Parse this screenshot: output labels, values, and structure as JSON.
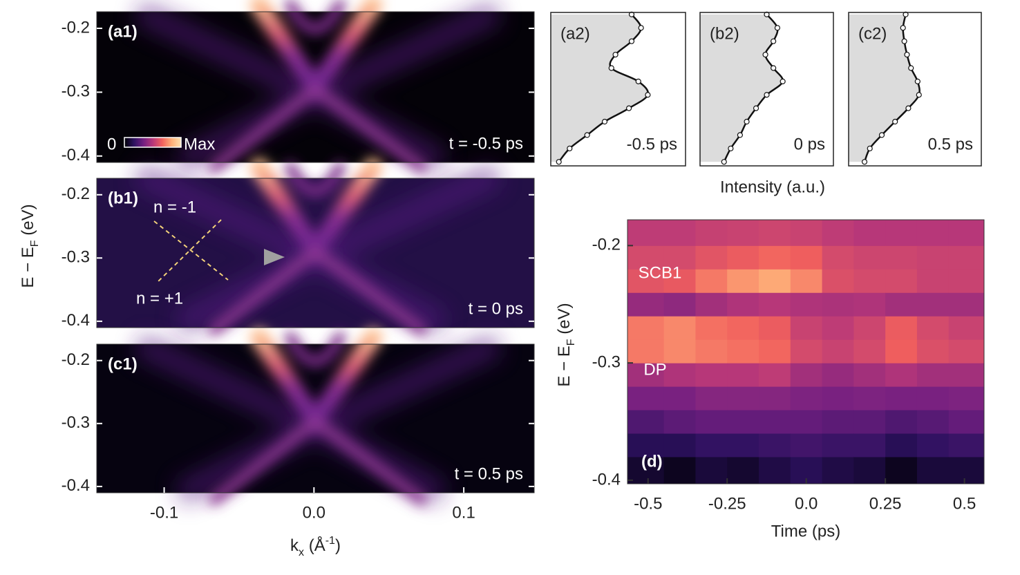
{
  "chart_data": [
    {
      "type": "arpes",
      "panel": "(a1)",
      "annotation": "t = -0.5 ps",
      "ylim": [
        -0.41,
        -0.174
      ],
      "yticks": [
        -0.2,
        -0.3,
        -0.4
      ],
      "xlim": [
        -0.145,
        0.147
      ],
      "colorbar": {
        "min_label": "0",
        "max_label": "Max"
      }
    },
    {
      "type": "arpes",
      "panel": "(b1)",
      "annotation": "t = 0 ps",
      "ylim": [
        -0.41,
        -0.174
      ],
      "yticks": [
        -0.2,
        -0.3,
        -0.4
      ],
      "xlim": [
        -0.145,
        0.147
      ],
      "ylabel": [
        "E − E",
        "F",
        " (eV)"
      ],
      "lines": [
        "n = -1",
        "n = +1"
      ]
    },
    {
      "type": "arpes",
      "panel": "(c1)",
      "annotation": "t = 0.5 ps",
      "ylim": [
        -0.41,
        -0.174
      ],
      "yticks": [
        -0.2,
        -0.3,
        -0.4
      ],
      "xlim": [
        -0.145,
        0.147
      ],
      "xticks": [
        -0.1,
        {
          "value": 0,
          "label": "0.0"
        },
        0.1
      ],
      "xlabel": [
        "k",
        "x",
        " (Å",
        "-1",
        ")"
      ]
    },
    {
      "type": "edc",
      "panel": "(a2)",
      "annotation": "-0.5 ps",
      "ylim": [
        -0.406,
        -0.177
      ],
      "xlim": [
        0,
        1
      ],
      "y": [
        -0.18,
        -0.2,
        -0.22,
        -0.24,
        -0.26,
        -0.28,
        -0.3,
        -0.32,
        -0.34,
        -0.36,
        -0.38,
        -0.4
      ],
      "values": [
        0.6,
        0.67,
        0.6,
        0.48,
        0.45,
        0.65,
        0.72,
        0.58,
        0.4,
        0.27,
        0.14,
        0.06
      ],
      "marker": "#888888"
    },
    {
      "type": "edc",
      "panel": "(b2)",
      "annotation": "0 ps",
      "ylim": [
        -0.406,
        -0.177
      ],
      "xlim": [
        0,
        1
      ],
      "xlabel": "Intensity (a.u.)",
      "y": [
        -0.18,
        -0.2,
        -0.22,
        -0.24,
        -0.26,
        -0.28,
        -0.3,
        -0.32,
        -0.34,
        -0.36,
        -0.38,
        -0.4
      ],
      "values": [
        0.5,
        0.58,
        0.55,
        0.49,
        0.55,
        0.62,
        0.5,
        0.42,
        0.35,
        0.3,
        0.23,
        0.18
      ],
      "marker": "#f4a77e"
    },
    {
      "type": "edc",
      "panel": "(c2)",
      "annotation": "0.5 ps",
      "ylim": [
        -0.406,
        -0.177
      ],
      "xlim": [
        0,
        1
      ],
      "y": [
        -0.18,
        -0.2,
        -0.22,
        -0.24,
        -0.26,
        -0.28,
        -0.3,
        -0.32,
        -0.34,
        -0.36,
        -0.38,
        -0.4
      ],
      "values": [
        0.43,
        0.41,
        0.42,
        0.44,
        0.47,
        0.52,
        0.53,
        0.45,
        0.35,
        0.25,
        0.16,
        0.12
      ],
      "marker": "#888888"
    },
    {
      "type": "heatmap",
      "panel": "(d)",
      "xlabel": "Time (ps)",
      "ylabel": [
        "E − E",
        "F",
        " (eV)"
      ],
      "annotations": [
        "SCB1",
        "DP"
      ],
      "x": [
        -0.5,
        -0.4,
        -0.3,
        -0.2,
        -0.1,
        0.0,
        0.1,
        0.2,
        0.3,
        0.4,
        0.5
      ],
      "y": [
        -0.39,
        -0.37,
        -0.35,
        -0.33,
        -0.31,
        -0.29,
        -0.27,
        -0.25,
        -0.23,
        -0.21,
        -0.19
      ],
      "values": [
        [
          0.08,
          0.15,
          0.25,
          0.35,
          0.45,
          0.72,
          0.72,
          0.42,
          0.62,
          0.58,
          0.52
        ],
        [
          0.05,
          0.15,
          0.28,
          0.35,
          0.48,
          0.75,
          0.75,
          0.4,
          0.64,
          0.58,
          0.52
        ],
        [
          0.1,
          0.18,
          0.3,
          0.38,
          0.5,
          0.72,
          0.7,
          0.45,
          0.72,
          0.62,
          0.54
        ],
        [
          0.08,
          0.18,
          0.3,
          0.38,
          0.5,
          0.7,
          0.68,
          0.48,
          0.78,
          0.65,
          0.55
        ],
        [
          0.12,
          0.2,
          0.3,
          0.38,
          0.52,
          0.68,
          0.65,
          0.5,
          0.82,
          0.68,
          0.56
        ],
        [
          0.15,
          0.22,
          0.3,
          0.36,
          0.45,
          0.58,
          0.55,
          0.48,
          0.75,
          0.66,
          0.55
        ],
        [
          0.12,
          0.2,
          0.28,
          0.35,
          0.42,
          0.55,
          0.52,
          0.47,
          0.6,
          0.58,
          0.52
        ],
        [
          0.1,
          0.2,
          0.28,
          0.36,
          0.45,
          0.58,
          0.56,
          0.48,
          0.58,
          0.56,
          0.5
        ],
        [
          0.05,
          0.15,
          0.25,
          0.35,
          0.48,
          0.66,
          0.65,
          0.45,
          0.58,
          0.56,
          0.5
        ],
        [
          0.1,
          0.18,
          0.27,
          0.35,
          0.45,
          0.6,
          0.58,
          0.45,
          0.55,
          0.55,
          0.5
        ],
        [
          0.1,
          0.2,
          0.3,
          0.36,
          0.45,
          0.58,
          0.55,
          0.45,
          0.55,
          0.55,
          0.5
        ]
      ],
      "xlim": [
        -0.565,
        0.562
      ],
      "ylim": [
        -0.403,
        -0.178
      ],
      "xticks": [
        -0.5,
        -0.25,
        {
          "value": 0,
          "label": "0.0"
        },
        0.25,
        0.5
      ],
      "yticks": [
        -0.2,
        -0.3,
        -0.4
      ],
      "colormap": [
        "#000004",
        "#2c115f",
        "#721f81",
        "#b73779",
        "#f1605d",
        "#feaf78",
        "#fde2b0"
      ]
    }
  ]
}
